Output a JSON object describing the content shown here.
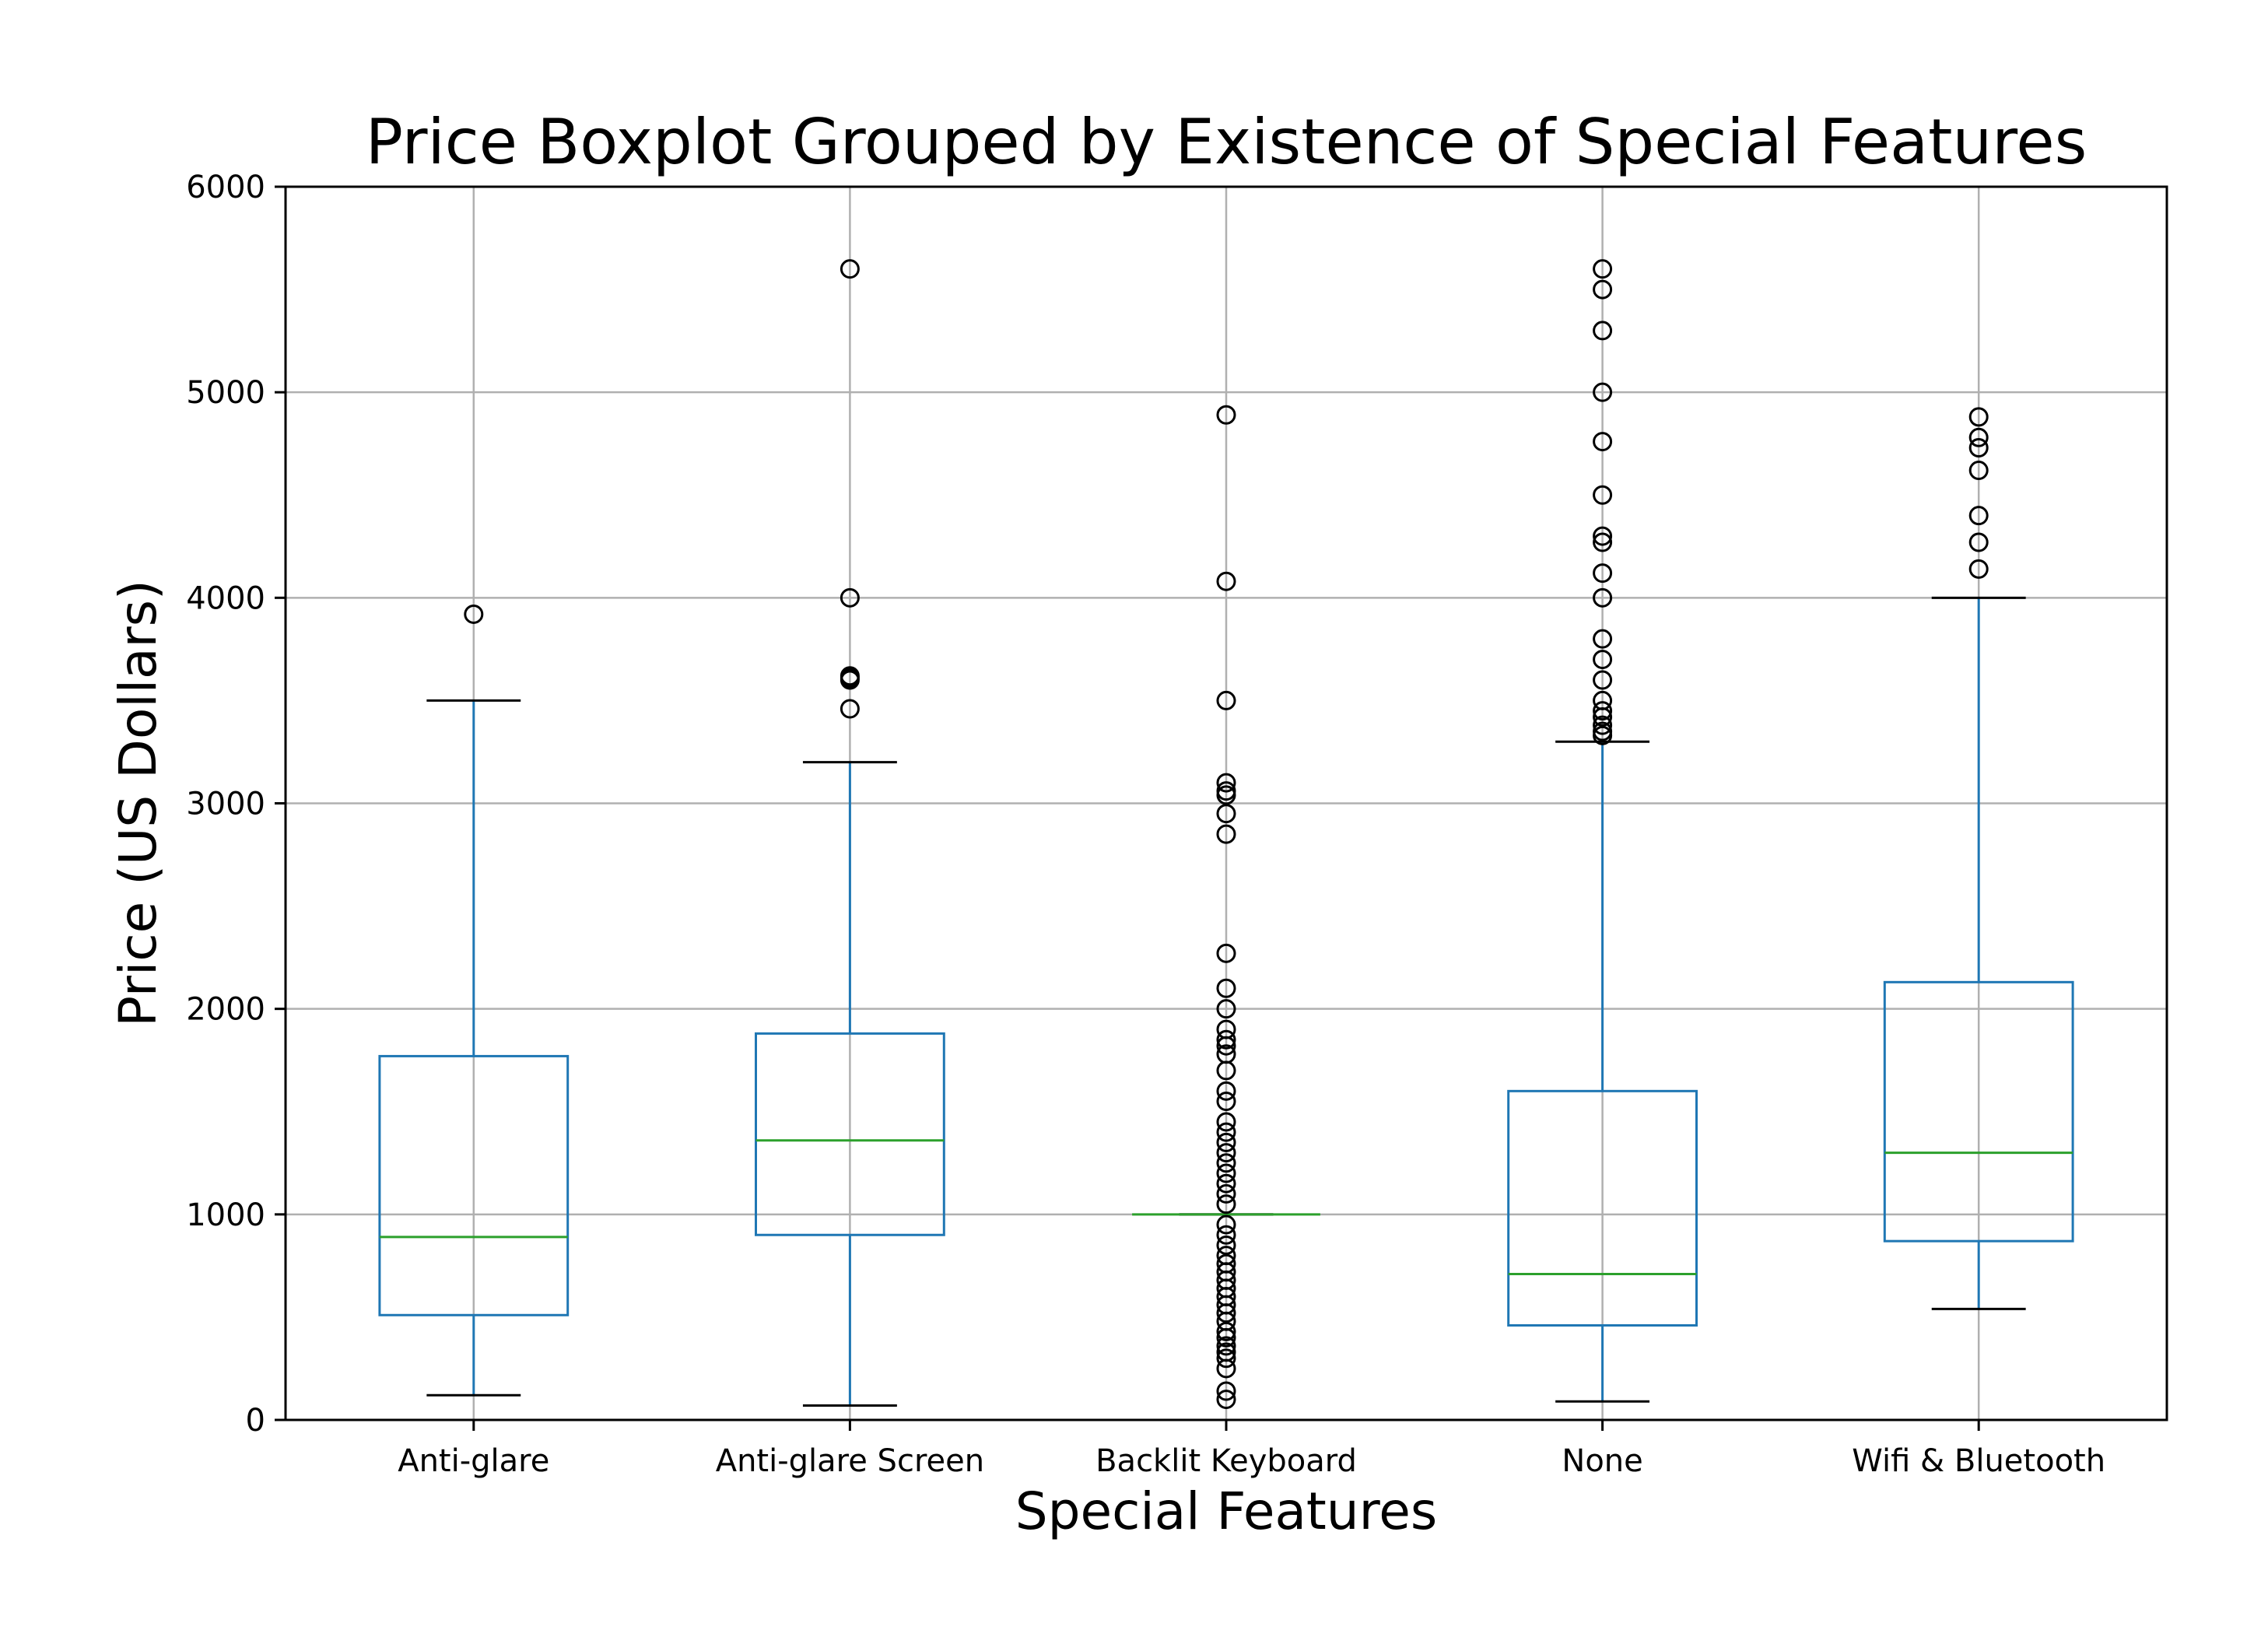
{
  "chart_data": {
    "type": "box",
    "title": "Price Boxplot Grouped by Existence of Special Features",
    "xlabel": "Special Features",
    "ylabel": "Price (US Dollars)",
    "ylim": [
      0,
      6000
    ],
    "y_ticks": [
      "0",
      "1000",
      "2000",
      "3000",
      "4000",
      "5000",
      "6000"
    ],
    "grid": true,
    "colors": {
      "box": "#1f77b4",
      "median": "#2ca02c",
      "whisker_cap": "#000000",
      "outlier": "#000000",
      "grid": "#b0b0b0"
    },
    "categories": [
      "Anti-glare",
      "Anti-glare Screen",
      "Backlit Keyboard",
      "None",
      "Wifi & Bluetooth"
    ],
    "boxes": [
      {
        "category": "Anti-glare",
        "whisker_low": 120,
        "q1": 510,
        "median": 890,
        "q3": 1770,
        "whisker_high": 3500,
        "outliers": [
          3920
        ]
      },
      {
        "category": "Anti-glare Screen",
        "whisker_low": 70,
        "q1": 900,
        "median": 1360,
        "q3": 1880,
        "whisker_high": 3200,
        "outliers": [
          3460,
          3600,
          3610,
          3620,
          4000,
          5600
        ]
      },
      {
        "category": "Backlit Keyboard",
        "whisker_low": 1000,
        "q1": 1000,
        "median": 1000,
        "q3": 1000,
        "whisker_high": 1000,
        "outliers": [
          100,
          140,
          250,
          300,
          330,
          360,
          400,
          430,
          480,
          520,
          560,
          600,
          640,
          680,
          720,
          760,
          800,
          850,
          900,
          950,
          1050,
          1100,
          1150,
          1200,
          1250,
          1300,
          1350,
          1400,
          1450,
          1550,
          1600,
          1700,
          1780,
          1820,
          1850,
          1900,
          2000,
          2100,
          2270,
          2850,
          2950,
          3040,
          3060,
          3100,
          3500,
          4080,
          4890
        ]
      },
      {
        "category": "None",
        "whisker_low": 90,
        "q1": 460,
        "median": 710,
        "q3": 1600,
        "whisker_high": 3300,
        "outliers": [
          3330,
          3350,
          3380,
          3420,
          3450,
          3500,
          3600,
          3700,
          3800,
          4000,
          4120,
          4270,
          4300,
          4500,
          4760,
          5000,
          5300,
          5500,
          5600
        ]
      },
      {
        "category": "Wifi & Bluetooth",
        "whisker_low": 540,
        "q1": 870,
        "median": 1300,
        "q3": 2130,
        "whisker_high": 4000,
        "outliers": [
          4140,
          4270,
          4400,
          4620,
          4730,
          4780,
          4880
        ]
      }
    ]
  }
}
